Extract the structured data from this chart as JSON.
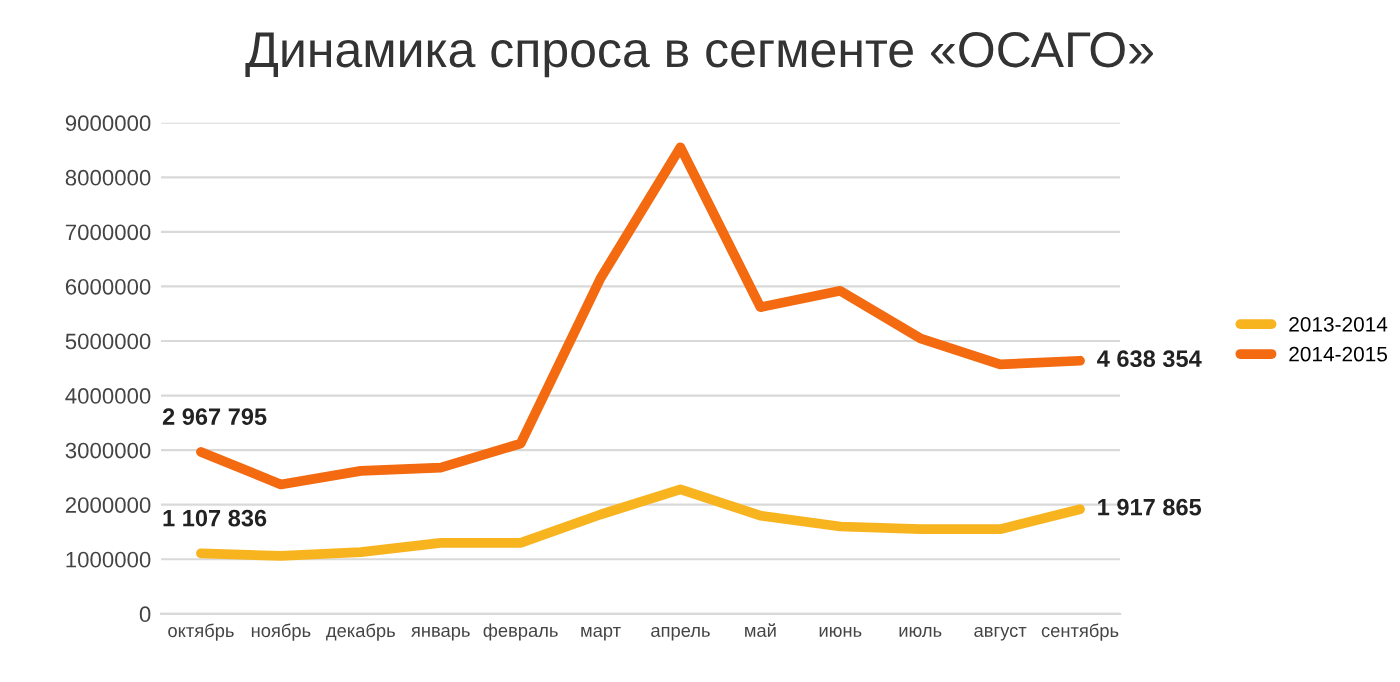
{
  "chart_data": {
    "type": "line",
    "title": "Динамика спроса в сегменте «ОСАГО»",
    "categories": [
      "октябрь",
      "ноябрь",
      "декабрь",
      "январь",
      "февраль",
      "март",
      "апрель",
      "май",
      "июнь",
      "июль",
      "август",
      "сентябрь"
    ],
    "series": [
      {
        "name": "2013-2014",
        "color": "#f8b41e",
        "values": [
          1107836,
          1060000,
          1130000,
          1300000,
          1300000,
          1820000,
          2280000,
          1800000,
          1600000,
          1550000,
          1550000,
          1917865
        ],
        "value_labels": [
          "1 107 836",
          null,
          null,
          null,
          null,
          null,
          null,
          null,
          null,
          null,
          null,
          "1 917 865"
        ]
      },
      {
        "name": "2014-2015",
        "color": "#f36a10",
        "values": [
          2967795,
          2370000,
          2620000,
          2680000,
          3120000,
          6150000,
          8550000,
          5620000,
          5920000,
          5050000,
          4570000,
          4638354
        ],
        "value_labels": [
          "2 967 795",
          null,
          null,
          null,
          null,
          null,
          null,
          null,
          null,
          null,
          null,
          "4 638 354"
        ]
      }
    ],
    "ylim": [
      0,
      9000000
    ],
    "yticks": [
      0,
      1000000,
      2000000,
      3000000,
      4000000,
      5000000,
      6000000,
      7000000,
      8000000,
      9000000
    ],
    "grid": "y",
    "legend": "right",
    "marker": "none",
    "line_style": "solid"
  }
}
